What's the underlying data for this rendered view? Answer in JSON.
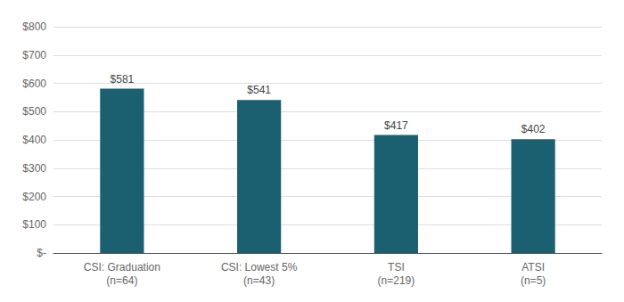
{
  "chart_data": {
    "type": "bar",
    "categories": [
      "CSI: Graduation\n(n=64)",
      "CSI: Lowest 5%\n(n=43)",
      "TSI\n(n=219)",
      "ATSI\n(n=5)"
    ],
    "values": [
      581,
      541,
      417,
      402
    ],
    "value_labels": [
      "$581",
      "$541",
      "$417",
      "$402"
    ],
    "data_labels": true,
    "color": "#1a6070",
    "ylim": [
      0,
      800
    ],
    "yticks": [
      {
        "value": 0,
        "label": "$-"
      },
      {
        "value": 100,
        "label": "$100"
      },
      {
        "value": 200,
        "label": "$200"
      },
      {
        "value": 300,
        "label": "$300"
      },
      {
        "value": 400,
        "label": "$400"
      },
      {
        "value": 500,
        "label": "$500"
      },
      {
        "value": 600,
        "label": "$600"
      },
      {
        "value": 700,
        "label": "$700"
      },
      {
        "value": 800,
        "label": "$800"
      }
    ],
    "grid": true
  }
}
